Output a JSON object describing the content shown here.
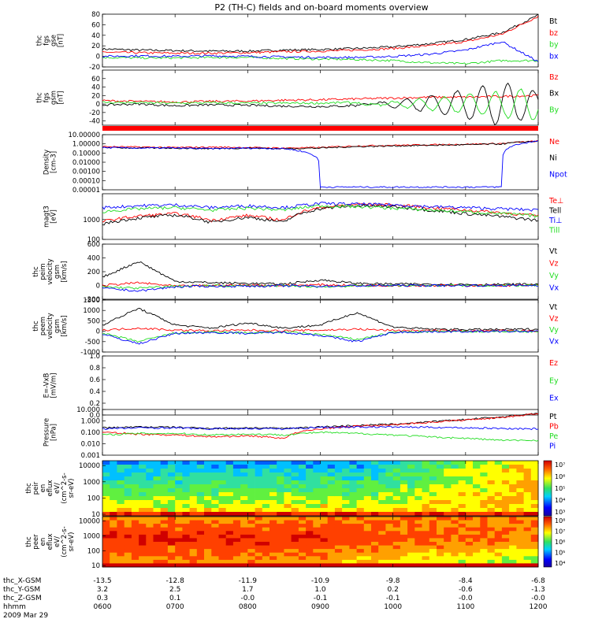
{
  "title": "P2 (TH-C) fields and on-board moments overview",
  "date_label": "2009 Mar 29",
  "time_axis": {
    "row_labels": [
      "thc_X-GSM",
      "thc_Y-GSM",
      "thc_Z-GSM",
      "hhmm"
    ],
    "x_gsm": [
      "-13.5",
      "-12.8",
      "-11.9",
      "-10.9",
      "-9.8",
      "-8.4",
      "-6.8"
    ],
    "y_gsm": [
      "3.2",
      "2.5",
      "1.7",
      "1.0",
      "0.2",
      "-0.6",
      "-1.3"
    ],
    "z_gsm": [
      "0.3",
      "0.1",
      "-0.0",
      "-0.1",
      "-0.1",
      "-0.0",
      "-0.0"
    ],
    "hhmm": [
      "0600",
      "0700",
      "0800",
      "0900",
      "1000",
      "1100",
      "1200"
    ]
  },
  "colors": {
    "black": "#000000",
    "red": "#ff0000",
    "green": "#22dd22",
    "blue": "#0000ff",
    "flag": "#ff0000"
  },
  "chart_data": [
    {
      "id": "fgs-gse",
      "type": "line",
      "ylabel": [
        "thc",
        "fgs",
        "gse",
        "[nT]"
      ],
      "ylim": [
        -20,
        80
      ],
      "yscale": "linear",
      "yticks": [
        "80",
        "60",
        "40",
        "20",
        "0",
        "-20"
      ],
      "x": [
        6.0,
        6.5,
        7.0,
        7.5,
        8.0,
        8.5,
        9.0,
        9.5,
        10.0,
        10.5,
        11.0,
        11.5,
        12.0
      ],
      "series": [
        {
          "name": "Bt",
          "color": "#000000",
          "values": [
            14,
            12,
            11,
            10,
            10,
            12,
            13,
            15,
            18,
            24,
            32,
            45,
            78
          ]
        },
        {
          "name": "bz",
          "color": "#ff0000",
          "values": [
            8,
            7,
            6,
            6,
            7,
            9,
            10,
            12,
            15,
            20,
            28,
            42,
            76
          ]
        },
        {
          "name": "by",
          "color": "#22dd22",
          "values": [
            -2,
            -3,
            -3,
            -2,
            -2,
            -4,
            -5,
            -6,
            -8,
            -12,
            -14,
            -8,
            -8
          ]
        },
        {
          "name": "bx",
          "color": "#0000ff",
          "values": [
            0,
            1,
            0,
            1,
            0,
            -1,
            -2,
            -2,
            0,
            4,
            12,
            28,
            -10
          ]
        }
      ]
    },
    {
      "id": "fgs-gsm",
      "type": "line",
      "ylabel": [
        "thc",
        "fgs",
        "gsm",
        "[nT]"
      ],
      "ylim": [
        -50,
        80
      ],
      "yscale": "linear",
      "yticks": [
        "60",
        "40",
        "20",
        "0",
        "-20",
        "-40"
      ],
      "x": [
        6.0,
        6.5,
        7.0,
        7.5,
        8.0,
        8.5,
        9.0,
        9.5,
        10.0,
        10.5,
        11.0,
        11.5,
        12.0
      ],
      "series": [
        {
          "name": "Bz",
          "color": "#ff0000",
          "values": [
            8,
            6,
            5,
            6,
            7,
            9,
            10,
            12,
            14,
            16,
            16,
            18,
            20
          ]
        },
        {
          "name": "Bx",
          "color": "#000000",
          "values": [
            -2,
            0,
            -4,
            -2,
            -3,
            -5,
            -6,
            -4,
            8,
            20,
            35,
            50,
            30
          ]
        },
        {
          "name": "By",
          "color": "#22dd22",
          "values": [
            4,
            3,
            2,
            3,
            2,
            2,
            2,
            4,
            -6,
            -14,
            -22,
            -30,
            -40
          ]
        }
      ]
    },
    {
      "id": "density",
      "type": "line",
      "ylabel": [
        "Density",
        "[cm-3]"
      ],
      "ylim": [
        1e-05,
        10
      ],
      "yscale": "log",
      "yticks": [
        "10.00000",
        "1.00000",
        "0.10000",
        "0.01000",
        "0.00100",
        "0.00010",
        "0.00001"
      ],
      "x": [
        6.0,
        6.5,
        7.0,
        7.5,
        8.0,
        8.5,
        9.0,
        9.5,
        10.0,
        10.5,
        11.0,
        11.5,
        12.0
      ],
      "series": [
        {
          "name": "Ne",
          "color": "#ff0000",
          "values": [
            0.5,
            0.45,
            0.4,
            0.45,
            0.4,
            0.35,
            0.4,
            0.6,
            0.7,
            0.8,
            0.9,
            1.1,
            2.0
          ]
        },
        {
          "name": "Ni",
          "color": "#000000",
          "values": [
            0.4,
            0.35,
            0.35,
            0.3,
            0.35,
            0.3,
            0.35,
            0.5,
            0.6,
            0.7,
            0.8,
            1.0,
            2.0
          ]
        },
        {
          "name": "Npot",
          "color": "#0000ff",
          "values": [
            0.4,
            0.35,
            0.35,
            0.3,
            0.35,
            0.3,
            2e-05,
            2e-05,
            2e-05,
            2e-05,
            2e-05,
            2e-05,
            2.0
          ]
        }
      ]
    },
    {
      "id": "temperature",
      "type": "line",
      "ylabel": [
        "magt3",
        "[eV]"
      ],
      "ylim": [
        100,
        20000
      ],
      "yscale": "log",
      "yticks": [
        "1000",
        "100"
      ],
      "x": [
        6.0,
        6.5,
        7.0,
        7.5,
        8.0,
        8.5,
        9.0,
        9.5,
        10.0,
        10.5,
        11.0,
        11.5,
        12.0
      ],
      "series": [
        {
          "name": "Te⊥",
          "color": "#ff0000",
          "values": [
            800,
            1500,
            2000,
            900,
            1600,
            900,
            4000,
            6000,
            5500,
            4000,
            3000,
            2200,
            1500
          ]
        },
        {
          "name": "Tell",
          "color": "#000000",
          "values": [
            600,
            1200,
            1700,
            700,
            1300,
            700,
            3500,
            5000,
            4500,
            3000,
            2000,
            1400,
            900
          ]
        },
        {
          "name": "Ti⊥",
          "color": "#0000ff",
          "values": [
            4000,
            5000,
            5500,
            4000,
            5000,
            4000,
            6500,
            6000,
            5500,
            4500,
            4000,
            3500,
            3000
          ]
        },
        {
          "name": "Till",
          "color": "#22dd22",
          "values": [
            2500,
            3500,
            4000,
            3000,
            3800,
            3000,
            5000,
            4500,
            3800,
            3000,
            2500,
            2000,
            1500
          ]
        }
      ]
    },
    {
      "id": "peim-velocity",
      "type": "line",
      "ylabel": [
        "thc",
        "peim",
        "velocity",
        "gsm",
        "[km/s]"
      ],
      "ylim": [
        -200,
        600
      ],
      "yscale": "linear",
      "yticks": [
        "600",
        "400",
        "200",
        "0",
        "-200"
      ],
      "x": [
        6.0,
        6.5,
        7.0,
        7.5,
        8.0,
        8.5,
        9.0,
        9.5,
        10.0,
        10.5,
        11.0,
        11.5,
        12.0
      ],
      "series": [
        {
          "name": "Vt",
          "color": "#000000",
          "values": [
            120,
            350,
            60,
            40,
            30,
            20,
            80,
            30,
            20,
            20,
            15,
            15,
            20
          ]
        },
        {
          "name": "Vz",
          "color": "#ff0000",
          "values": [
            0,
            40,
            -10,
            0,
            5,
            0,
            10,
            0,
            0,
            0,
            0,
            0,
            0
          ]
        },
        {
          "name": "Vy",
          "color": "#22dd22",
          "values": [
            -20,
            -40,
            -10,
            -5,
            -5,
            -5,
            -20,
            -5,
            0,
            0,
            0,
            0,
            0
          ]
        },
        {
          "name": "Vx",
          "color": "#0000ff",
          "values": [
            -40,
            -80,
            -20,
            -10,
            -10,
            -5,
            -10,
            -5,
            0,
            0,
            0,
            0,
            0
          ]
        }
      ]
    },
    {
      "id": "peem-velocity",
      "type": "line",
      "ylabel": [
        "thc",
        "peem",
        "velocity",
        "gsm",
        "[km/s]"
      ],
      "ylim": [
        -1000,
        1500
      ],
      "yscale": "linear",
      "yticks": [
        "1500",
        "1000",
        "500",
        "0",
        "-500",
        "-1000"
      ],
      "x": [
        6.0,
        6.5,
        7.0,
        7.5,
        8.0,
        8.5,
        9.0,
        9.5,
        10.0,
        10.5,
        11.0,
        11.5,
        12.0
      ],
      "series": [
        {
          "name": "Vt",
          "color": "#000000",
          "values": [
            300,
            1100,
            300,
            150,
            400,
            150,
            300,
            900,
            200,
            100,
            80,
            80,
            100
          ]
        },
        {
          "name": "Vz",
          "color": "#ff0000",
          "values": [
            50,
            150,
            50,
            20,
            50,
            20,
            50,
            100,
            40,
            30,
            20,
            20,
            20
          ]
        },
        {
          "name": "Vy",
          "color": "#22dd22",
          "values": [
            -100,
            -500,
            -80,
            -50,
            -80,
            -40,
            -150,
            -400,
            -50,
            -20,
            -10,
            -10,
            -10
          ]
        },
        {
          "name": "Vx",
          "color": "#0000ff",
          "values": [
            -150,
            -600,
            -100,
            -60,
            -100,
            -50,
            -200,
            -500,
            -60,
            -20,
            -10,
            -10,
            -10
          ]
        }
      ]
    },
    {
      "id": "efield",
      "type": "line",
      "ylabel": [
        "E=-VxB",
        "[mV/m]"
      ],
      "ylim": [
        0,
        1
      ],
      "yscale": "linear",
      "yticks": [
        "1.0",
        "0.8",
        "0.6",
        "0.4",
        "0.2",
        "0.0"
      ],
      "legend": [
        {
          "name": "Ez",
          "color": "#ff0000"
        },
        {
          "name": "Ey",
          "color": "#22dd22"
        },
        {
          "name": "Ex",
          "color": "#0000ff"
        }
      ]
    },
    {
      "id": "pressure",
      "type": "line",
      "ylabel": [
        "Pressure",
        "[nPa]"
      ],
      "ylim": [
        0.001,
        10
      ],
      "yscale": "log",
      "yticks": [
        "10.000",
        "1.000",
        "0.100",
        "0.010",
        "0.001"
      ],
      "x": [
        6.0,
        6.5,
        7.0,
        7.5,
        8.0,
        8.5,
        9.0,
        9.5,
        10.0,
        10.5,
        11.0,
        11.5,
        12.0
      ],
      "series": [
        {
          "name": "Pt",
          "color": "#000000",
          "values": [
            0.25,
            0.3,
            0.28,
            0.22,
            0.25,
            0.22,
            0.3,
            0.4,
            0.5,
            0.8,
            1.3,
            2.2,
            4.5
          ]
        },
        {
          "name": "Pb",
          "color": "#ff0000",
          "values": [
            0.1,
            0.07,
            0.06,
            0.04,
            0.05,
            0.03,
            0.2,
            0.35,
            0.45,
            0.75,
            1.2,
            2.0,
            4.2
          ]
        },
        {
          "name": "Pe",
          "color": "#22dd22",
          "values": [
            0.06,
            0.08,
            0.08,
            0.06,
            0.07,
            0.06,
            0.1,
            0.08,
            0.06,
            0.04,
            0.03,
            0.02,
            0.02
          ]
        },
        {
          "name": "Pi",
          "color": "#0000ff",
          "values": [
            0.2,
            0.25,
            0.25,
            0.2,
            0.22,
            0.2,
            0.28,
            0.3,
            0.3,
            0.28,
            0.25,
            0.22,
            0.2
          ]
        }
      ]
    },
    {
      "id": "peir-spectrogram",
      "type": "heatmap",
      "ylabel": [
        "thc",
        "peir",
        "en",
        "eflux",
        "eV/",
        "(cm^2-s-",
        "sr-eV)"
      ],
      "yscale": "log",
      "ylim": [
        8,
        20000
      ],
      "yticks": [
        "10000",
        "1000",
        "100",
        "10"
      ],
      "colorbar": {
        "ticks": [
          "10⁷",
          "10⁶",
          "10⁵",
          "10⁴",
          "10³"
        ],
        "range": [
          1000,
          10000000
        ]
      }
    },
    {
      "id": "peer-spectrogram",
      "type": "heatmap",
      "ylabel": [
        "thc",
        "peer",
        "en",
        "eflux",
        "eV/",
        "(cm^2-s-",
        "sr-eV)"
      ],
      "yscale": "log",
      "ylim": [
        8,
        20000
      ],
      "yticks": [
        "10000",
        "1000",
        "100",
        "10"
      ],
      "colorbar": {
        "ticks": [
          "10⁸",
          "10⁷",
          "10⁶",
          "10⁵",
          "10⁴"
        ],
        "range": [
          10000,
          100000000
        ]
      }
    }
  ]
}
